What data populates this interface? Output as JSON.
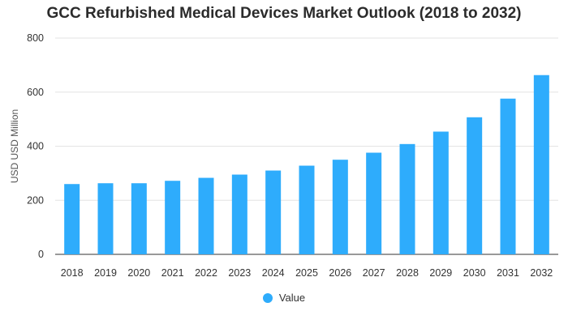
{
  "chart_data": {
    "type": "bar",
    "title": "GCC Refurbished Medical Devices Market Outlook (2018 to 2032)",
    "xlabel": "",
    "ylabel": "USD USD Million",
    "ylim": [
      0,
      800
    ],
    "yticks": [
      0,
      200,
      400,
      600,
      800
    ],
    "categories": [
      "2018",
      "2019",
      "2020",
      "2021",
      "2022",
      "2023",
      "2024",
      "2025",
      "2026",
      "2027",
      "2028",
      "2029",
      "2030",
      "2031",
      "2032"
    ],
    "series": [
      {
        "name": "Value",
        "color": "#2eacfc",
        "values": [
          260,
          263,
          263,
          272,
          283,
          295,
          310,
          328,
          350,
          376,
          408,
          454,
          507,
          576,
          663
        ]
      }
    ],
    "legend_position": "bottom-center",
    "grid": true
  }
}
